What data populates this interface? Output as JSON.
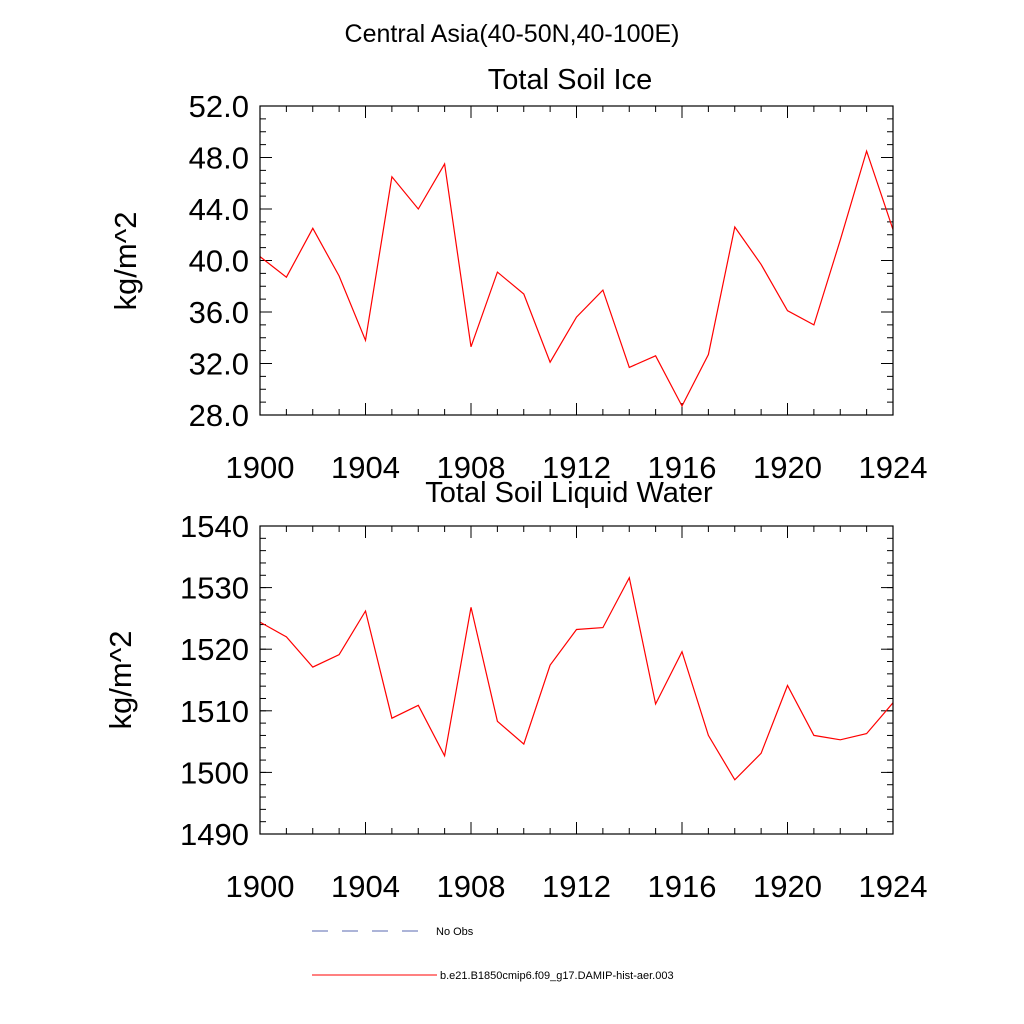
{
  "figure": {
    "main_title": "Central Asia(40-50N,40-100E)"
  },
  "chart_data": [
    {
      "type": "line",
      "title": "Total Soil Ice",
      "xlabel": "",
      "ylabel": "kg/m^2",
      "xlim": [
        1900,
        1924
      ],
      "ylim": [
        28,
        52
      ],
      "x_ticks": [
        1900,
        1904,
        1908,
        1912,
        1916,
        1920,
        1924
      ],
      "x_tick_labels": [
        "1900",
        "1904",
        "1908",
        "1912",
        "1916",
        "1920",
        "1924"
      ],
      "y_ticks": [
        28,
        32,
        36,
        40,
        44,
        48,
        52
      ],
      "y_tick_labels": [
        "28.0",
        "32.0",
        "36.0",
        "40.0",
        "44.0",
        "48.0",
        "52.0"
      ],
      "x_minor_step": 1,
      "y_minor_step": 1,
      "grid": false,
      "series": [
        {
          "name": "b.e21.B1850cmip6.f09_g17.DAMIP-hist-aer.003",
          "color": "#ff0000",
          "x": [
            1900,
            1901,
            1902,
            1903,
            1904,
            1905,
            1906,
            1907,
            1908,
            1909,
            1910,
            1911,
            1912,
            1913,
            1914,
            1915,
            1916,
            1917,
            1918,
            1919,
            1920,
            1921,
            1922,
            1923,
            1924
          ],
          "values": [
            40.3,
            38.7,
            42.5,
            38.8,
            33.8,
            46.5,
            44.0,
            47.5,
            33.3,
            39.1,
            37.4,
            32.1,
            35.6,
            37.7,
            31.7,
            32.6,
            28.7,
            32.7,
            42.6,
            39.7,
            36.1,
            35.0,
            41.6,
            48.5,
            42.4
          ]
        }
      ]
    },
    {
      "type": "line",
      "title": "Total Soil Liquid Water",
      "xlabel": "",
      "ylabel": "kg/m^2",
      "xlim": [
        1900,
        1924
      ],
      "ylim": [
        1490,
        1540
      ],
      "x_ticks": [
        1900,
        1904,
        1908,
        1912,
        1916,
        1920,
        1924
      ],
      "x_tick_labels": [
        "1900",
        "1904",
        "1908",
        "1912",
        "1916",
        "1920",
        "1924"
      ],
      "y_ticks": [
        1490,
        1500,
        1510,
        1520,
        1530,
        1540
      ],
      "y_tick_labels": [
        "1490",
        "1500",
        "1510",
        "1520",
        "1530",
        "1540"
      ],
      "x_minor_step": 1,
      "y_minor_step": 2,
      "grid": false,
      "series": [
        {
          "name": "b.e21.B1850cmip6.f09_g17.DAMIP-hist-aer.003",
          "color": "#ff0000",
          "x": [
            1900,
            1901,
            1902,
            1903,
            1904,
            1905,
            1906,
            1907,
            1908,
            1909,
            1910,
            1911,
            1912,
            1913,
            1914,
            1915,
            1916,
            1917,
            1918,
            1919,
            1920,
            1921,
            1922,
            1923,
            1924
          ],
          "values": [
            1524.4,
            1522.0,
            1517.1,
            1519.1,
            1526.2,
            1508.8,
            1510.9,
            1502.7,
            1526.8,
            1508.3,
            1504.6,
            1517.4,
            1523.2,
            1523.5,
            1531.6,
            1511.1,
            1519.6,
            1506.0,
            1498.8,
            1503.1,
            1514.1,
            1506.0,
            1505.3,
            1506.3,
            1511.3
          ]
        }
      ]
    }
  ],
  "legend": {
    "placement": "bottom",
    "entries": [
      {
        "label": "No Obs",
        "style": "dashed",
        "color": "#5a6ab0"
      },
      {
        "label": "b.e21.B1850cmip6.f09_g17.DAMIP-hist-aer.003",
        "style": "solid",
        "color": "#ff0000"
      }
    ]
  }
}
